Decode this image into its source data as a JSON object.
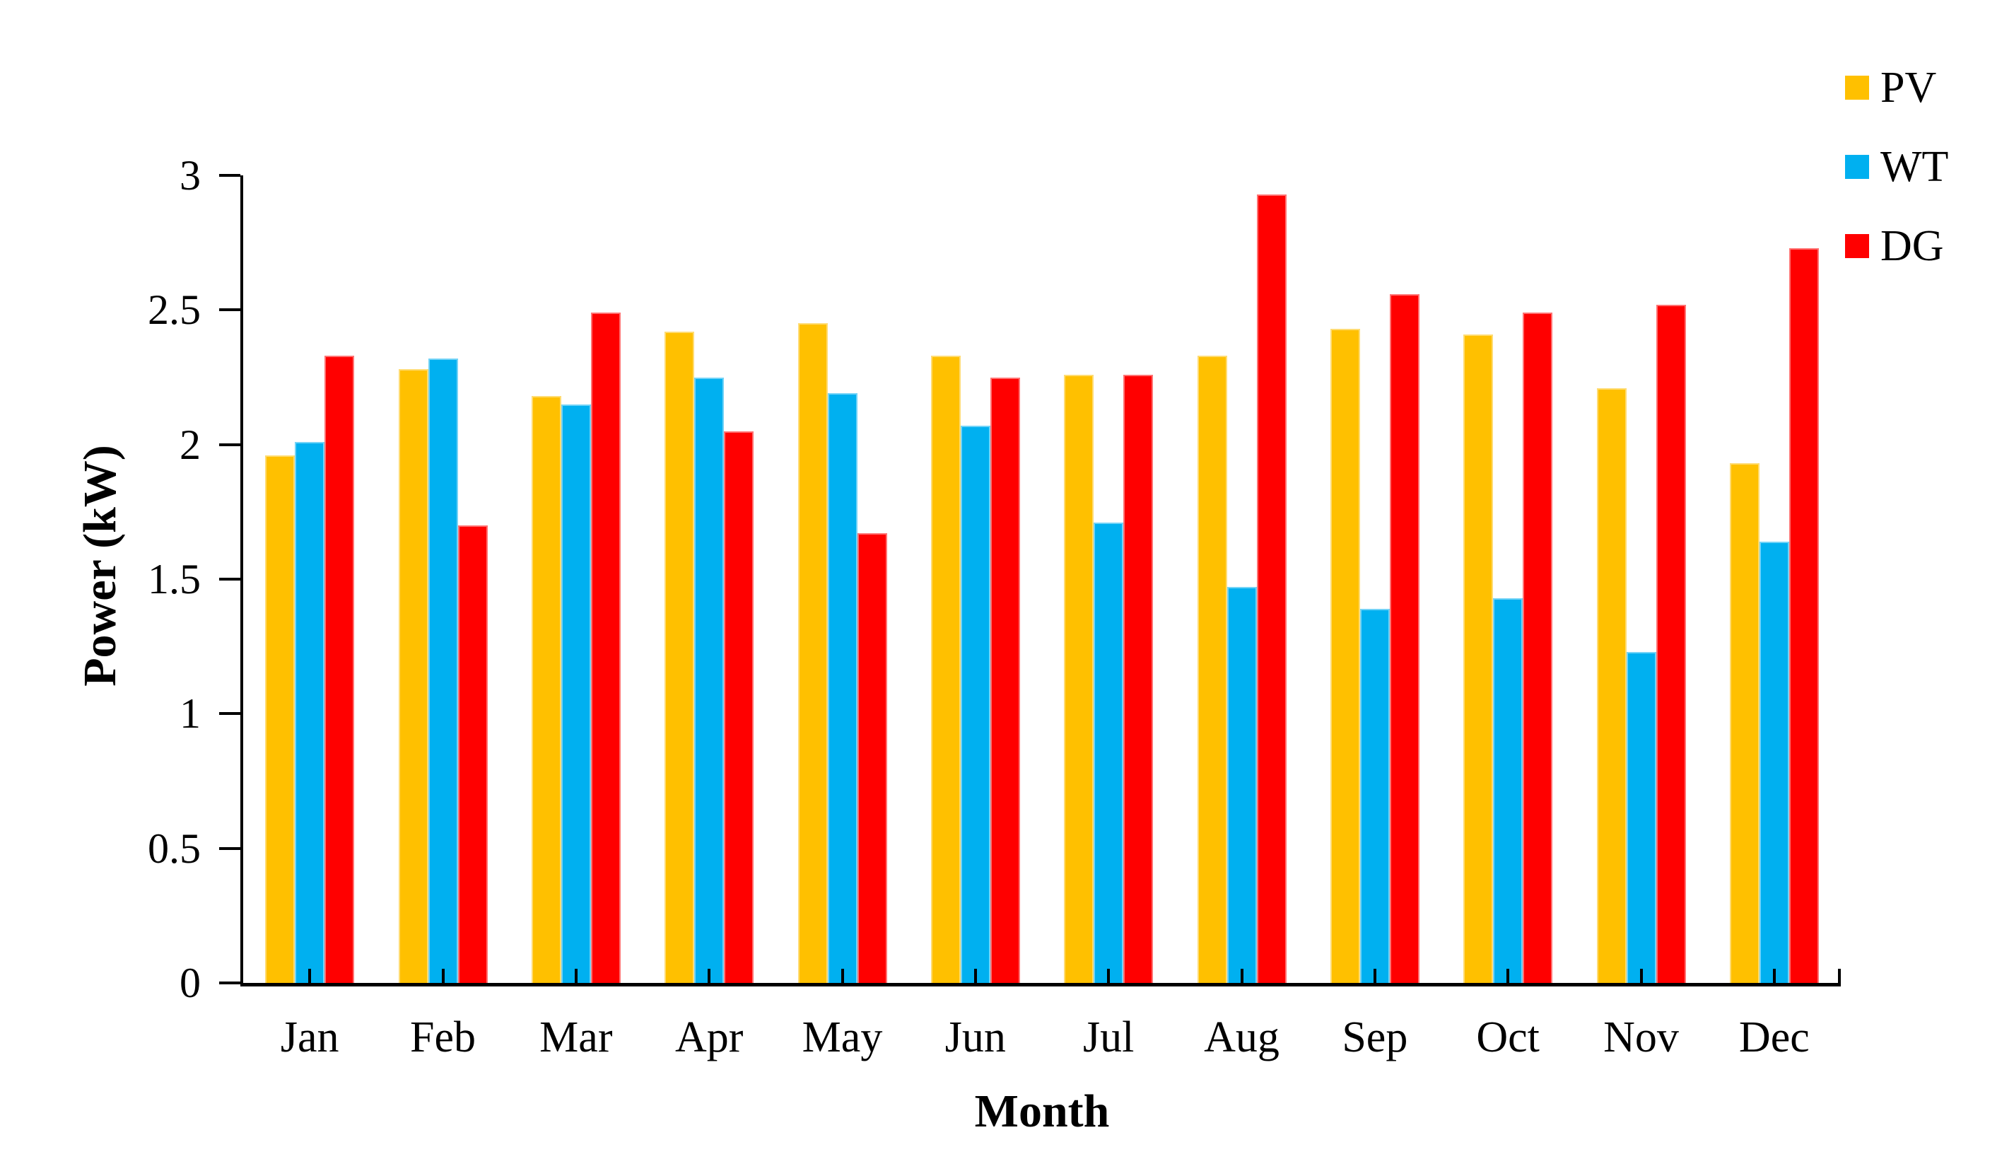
{
  "chart_data": {
    "type": "bar",
    "title": "",
    "xlabel": "Month",
    "ylabel": "Power (kW)",
    "ylim": [
      0,
      3
    ],
    "y_tick_values": [
      3,
      2.5,
      2,
      1.5,
      1,
      0.5,
      0
    ],
    "y_tick_labels": [
      "3",
      "2.5",
      "2",
      "1.5",
      "1",
      "0.5",
      "0"
    ],
    "categories": [
      "Jan",
      "Feb",
      "Mar",
      "Apr",
      "May",
      "Jun",
      "Jul",
      "Aug",
      "Sep",
      "Oct",
      "Nov",
      "Dec"
    ],
    "series": [
      {
        "name": "PV",
        "color": "#FFC000",
        "values": [
          1.96,
          2.28,
          2.18,
          2.42,
          2.45,
          2.33,
          2.26,
          2.33,
          2.43,
          2.41,
          2.21,
          1.93
        ]
      },
      {
        "name": "WT",
        "color": "#00B0F0",
        "values": [
          2.01,
          2.32,
          2.15,
          2.25,
          2.19,
          2.07,
          1.71,
          1.47,
          1.39,
          1.43,
          1.23,
          1.64
        ]
      },
      {
        "name": "DG",
        "color": "#FF0000",
        "values": [
          2.33,
          1.7,
          2.49,
          2.05,
          1.67,
          2.25,
          2.26,
          2.93,
          2.56,
          2.49,
          2.52,
          2.73
        ]
      }
    ],
    "legend_position": "top-right",
    "grid": false,
    "axis_color": "#000000",
    "background_color": "#FFFFFF"
  },
  "axes": {
    "x_title": "Month",
    "y_title": "Power (kW)"
  },
  "legend": {
    "items": [
      {
        "label": "PV",
        "color": "#FFC000"
      },
      {
        "label": "WT",
        "color": "#00B0F0"
      },
      {
        "label": "DG",
        "color": "#FF0000"
      }
    ]
  }
}
